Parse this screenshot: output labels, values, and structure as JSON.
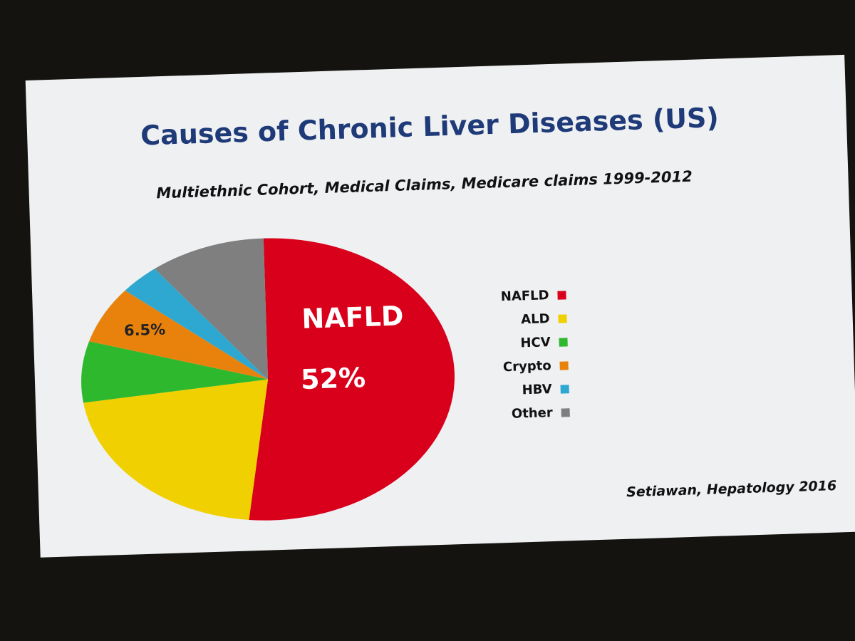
{
  "chart_data": {
    "type": "pie",
    "title": "Causes of Chronic Liver Diseases (US)",
    "subtitle": "Multiethnic Cohort, Medical Claims, Medicare claims 1999-2012",
    "source": "Setiawan, Hepatology 2016",
    "categories": [
      "NAFLD",
      "ALD",
      "HCV",
      "Crypto",
      "HBV",
      "Other"
    ],
    "values": [
      52,
      21,
      7,
      6.5,
      3.5,
      10
    ],
    "value_labels": [
      "52%",
      null,
      null,
      "6.5%",
      null,
      null
    ],
    "colors": [
      "#d9001b",
      "#f0d000",
      "#2eb82e",
      "#e8820c",
      "#2ea8d0",
      "#7f7f7f"
    ],
    "legend": "right"
  }
}
